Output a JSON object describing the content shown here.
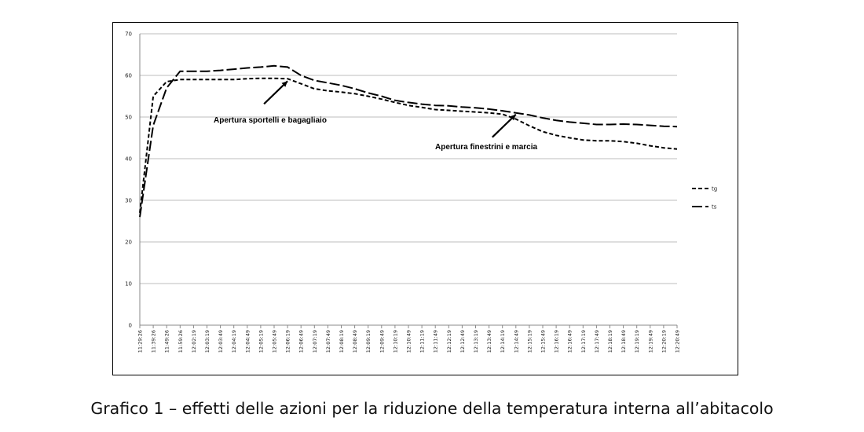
{
  "caption": "Grafico 1 – effetti delle azioni per la riduzione della temperatura interna all’abitacolo",
  "chart_data": {
    "type": "line",
    "title": "",
    "xlabel": "",
    "ylabel": "",
    "ylim": [
      0,
      70
    ],
    "yticks": [
      0,
      10,
      20,
      30,
      40,
      50,
      60,
      70
    ],
    "grid": true,
    "legend_position": "right",
    "categories": [
      "11:29:26",
      "11:39:26",
      "11:49:26",
      "11:59:26",
      "12:02:19",
      "12:03:19",
      "12:03:49",
      "12:04:19",
      "12:04:49",
      "12:05:19",
      "12:05:49",
      "12:06:19",
      "12:06:49",
      "12:07:19",
      "12:07:49",
      "12:08:19",
      "12:08:49",
      "12:09:19",
      "12:09:49",
      "12:10:19",
      "12:10:49",
      "12:11:19",
      "12:11:49",
      "12:12:19",
      "12:12:49",
      "12:13:19",
      "12:13:49",
      "12:14:19",
      "12:14:49",
      "12:15:19",
      "12:15:49",
      "12:16:19",
      "12:16:49",
      "12:17:19",
      "12:17:49",
      "12:18:19",
      "12:18:49",
      "12:19:19",
      "12:19:49",
      "12:20:19",
      "12:20:49"
    ],
    "series": [
      {
        "name": "tg",
        "dash": "short",
        "values": [
          27,
          55,
          58.5,
          59,
          59,
          59,
          59,
          59,
          59.2,
          59.3,
          59.3,
          59.2,
          58,
          56.8,
          56.3,
          56,
          55.6,
          55,
          54.3,
          53.5,
          52.8,
          52.3,
          51.8,
          51.6,
          51.4,
          51.2,
          51,
          50.7,
          49.5,
          47.9,
          46.5,
          45.6,
          45,
          44.5,
          44.3,
          44.3,
          44.1,
          43.7,
          43.1,
          42.6,
          42.3
        ]
      },
      {
        "name": "ts",
        "dash": "long",
        "values": [
          26,
          48,
          57,
          61,
          61,
          61,
          61.2,
          61.5,
          61.8,
          62,
          62.3,
          62,
          60,
          58.8,
          58.2,
          57.6,
          56.8,
          55.8,
          55,
          54,
          53.5,
          53.1,
          52.8,
          52.7,
          52.4,
          52.2,
          51.9,
          51.5,
          51,
          50.5,
          49.8,
          49.2,
          48.8,
          48.5,
          48.2,
          48.2,
          48.3,
          48.2,
          48,
          47.8,
          47.7
        ]
      }
    ],
    "annotations": [
      {
        "text": "Apertura sportelli e bagagliaio",
        "at_category": "12:06:19",
        "at_value": 59
      },
      {
        "text": "Apertura finestrini e marcia",
        "at_category": "12:14:49",
        "at_value": 51
      }
    ]
  }
}
